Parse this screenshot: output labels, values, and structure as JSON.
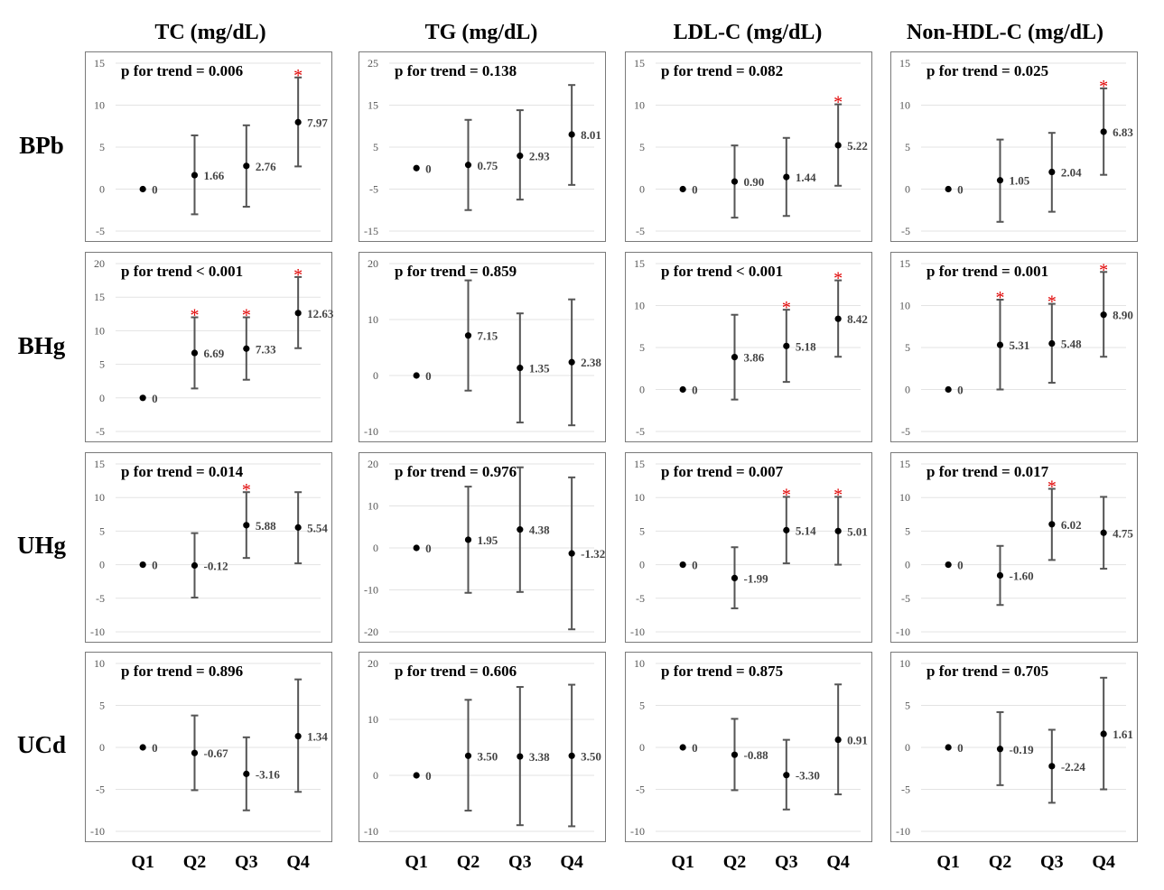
{
  "categories": [
    "Q1",
    "Q2",
    "Q3",
    "Q4"
  ],
  "colors": {
    "point": "#000000",
    "errorbar": "#555555",
    "significance": "#e00000",
    "grid": "#e3e3e3"
  },
  "columns": [
    "TC (mg/dL)",
    "TG (mg/dL)",
    "LDL-C (mg/dL)",
    "Non-HDL-C (mg/dL)"
  ],
  "rows": [
    "BPb",
    "BHg",
    "UHg",
    "UCd"
  ],
  "chart_data": [
    {
      "type": "scatter",
      "row": "BPb",
      "column": "TC (mg/dL)",
      "p_trend": "p for trend = 0.006",
      "ylim": [
        -5,
        15
      ],
      "yticks": [
        -5,
        0,
        5,
        10,
        15
      ],
      "grid": true,
      "values": [
        0,
        1.66,
        2.76,
        7.97
      ],
      "labels": [
        "0",
        "1.66",
        "2.76",
        "7.97"
      ],
      "lower": [
        0,
        -3.0,
        -2.1,
        2.7
      ],
      "upper": [
        0,
        6.4,
        7.6,
        13.3
      ],
      "significant": [
        false,
        false,
        false,
        true
      ]
    },
    {
      "type": "scatter",
      "row": "BPb",
      "column": "TG (mg/dL)",
      "p_trend": "p for trend = 0.138",
      "ylim": [
        -15,
        25
      ],
      "yticks": [
        -15,
        -5,
        5,
        15,
        25
      ],
      "grid": true,
      "values": [
        0,
        0.75,
        2.93,
        8.01
      ],
      "labels": [
        "0",
        "0.75",
        "2.93",
        "8.01"
      ],
      "lower": [
        0,
        -10.0,
        -7.5,
        -4.0
      ],
      "upper": [
        0,
        11.5,
        13.8,
        19.8
      ],
      "significant": [
        false,
        false,
        false,
        false
      ]
    },
    {
      "type": "scatter",
      "row": "BPb",
      "column": "LDL-C (mg/dL)",
      "p_trend": "p for trend = 0.082",
      "ylim": [
        -5,
        15
      ],
      "yticks": [
        -5,
        0,
        5,
        10,
        15
      ],
      "grid": true,
      "values": [
        0,
        0.9,
        1.44,
        5.22
      ],
      "labels": [
        "0",
        "0.90",
        "1.44",
        "5.22"
      ],
      "lower": [
        0,
        -3.4,
        -3.2,
        0.4
      ],
      "upper": [
        0,
        5.2,
        6.1,
        10.1
      ],
      "significant": [
        false,
        false,
        false,
        true
      ]
    },
    {
      "type": "scatter",
      "row": "BPb",
      "column": "Non-HDL-C (mg/dL)",
      "p_trend": "p for trend = 0.025",
      "ylim": [
        -5,
        15
      ],
      "yticks": [
        -5,
        0,
        5,
        10,
        15
      ],
      "grid": true,
      "values": [
        0,
        1.05,
        2.04,
        6.83
      ],
      "labels": [
        "0",
        "1.05",
        "2.04",
        "6.83"
      ],
      "lower": [
        0,
        -3.9,
        -2.7,
        1.7
      ],
      "upper": [
        0,
        5.9,
        6.7,
        12.0
      ],
      "significant": [
        false,
        false,
        false,
        true
      ]
    },
    {
      "type": "scatter",
      "row": "BHg",
      "column": "TC (mg/dL)",
      "p_trend": "p for trend < 0.001",
      "ylim": [
        -5,
        20
      ],
      "yticks": [
        -5,
        0,
        5,
        10,
        15,
        20
      ],
      "grid": true,
      "values": [
        0,
        6.69,
        7.33,
        12.63
      ],
      "labels": [
        "0",
        "6.69",
        "7.33",
        "12.63"
      ],
      "lower": [
        0,
        1.4,
        2.7,
        7.4
      ],
      "upper": [
        0,
        12.0,
        12.0,
        18.0
      ],
      "significant": [
        false,
        true,
        true,
        true
      ]
    },
    {
      "type": "scatter",
      "row": "BHg",
      "column": "TG (mg/dL)",
      "p_trend": "p for trend = 0.859",
      "ylim": [
        -10,
        20
      ],
      "yticks": [
        -10,
        0,
        10,
        20
      ],
      "grid": true,
      "values": [
        0,
        7.15,
        1.35,
        2.38
      ],
      "labels": [
        "0",
        "7.15",
        "1.35",
        "2.38"
      ],
      "lower": [
        0,
        -2.7,
        -8.4,
        -8.9
      ],
      "upper": [
        0,
        17.0,
        11.1,
        13.6
      ],
      "significant": [
        false,
        false,
        false,
        false
      ]
    },
    {
      "type": "scatter",
      "row": "BHg",
      "column": "LDL-C (mg/dL)",
      "p_trend": "p for trend < 0.001",
      "ylim": [
        -5,
        15
      ],
      "yticks": [
        -5,
        0,
        5,
        10,
        15
      ],
      "grid": true,
      "values": [
        0,
        3.86,
        5.18,
        8.42
      ],
      "labels": [
        "0",
        "3.86",
        "5.18",
        "8.42"
      ],
      "lower": [
        0,
        -1.2,
        0.9,
        3.9
      ],
      "upper": [
        0,
        8.9,
        9.5,
        13.0
      ],
      "significant": [
        false,
        false,
        true,
        true
      ]
    },
    {
      "type": "scatter",
      "row": "BHg",
      "column": "Non-HDL-C (mg/dL)",
      "p_trend": "p for trend = 0.001",
      "ylim": [
        -5,
        15
      ],
      "yticks": [
        -5,
        0,
        5,
        10,
        15
      ],
      "grid": true,
      "values": [
        0,
        5.31,
        5.48,
        8.9
      ],
      "labels": [
        "0",
        "5.31",
        "5.48",
        "8.90"
      ],
      "lower": [
        0,
        0.0,
        0.8,
        3.9
      ],
      "upper": [
        0,
        10.7,
        10.2,
        14.0
      ],
      "significant": [
        false,
        true,
        true,
        true
      ]
    },
    {
      "type": "scatter",
      "row": "UHg",
      "column": "TC (mg/dL)",
      "p_trend": "p for trend = 0.014",
      "ylim": [
        -10,
        15
      ],
      "yticks": [
        -10,
        -5,
        0,
        5,
        10,
        15
      ],
      "grid": true,
      "values": [
        0,
        -0.12,
        5.88,
        5.54
      ],
      "labels": [
        "0",
        "-0.12",
        "5.88",
        "5.54"
      ],
      "lower": [
        0,
        -4.9,
        1.0,
        0.2
      ],
      "upper": [
        0,
        4.7,
        10.8,
        10.8
      ],
      "significant": [
        false,
        false,
        true,
        false
      ]
    },
    {
      "type": "scatter",
      "row": "UHg",
      "column": "TG (mg/dL)",
      "p_trend": "p for trend = 0.976",
      "ylim": [
        -20,
        20
      ],
      "yticks": [
        -20,
        -10,
        0,
        10,
        20
      ],
      "grid": true,
      "values": [
        0,
        1.95,
        4.38,
        -1.32
      ],
      "labels": [
        "0",
        "1.95",
        "4.38",
        "-1.32"
      ],
      "lower": [
        0,
        -10.7,
        -10.5,
        -19.4
      ],
      "upper": [
        0,
        14.6,
        19.2,
        16.8
      ],
      "significant": [
        false,
        false,
        false,
        false
      ]
    },
    {
      "type": "scatter",
      "row": "UHg",
      "column": "LDL-C (mg/dL)",
      "p_trend": "p for trend = 0.007",
      "ylim": [
        -10,
        15
      ],
      "yticks": [
        -10,
        -5,
        0,
        5,
        10,
        15
      ],
      "grid": true,
      "values": [
        0,
        -1.99,
        5.14,
        5.01
      ],
      "labels": [
        "0",
        "-1.99",
        "5.14",
        "5.01"
      ],
      "lower": [
        0,
        -6.5,
        0.2,
        0.0
      ],
      "upper": [
        0,
        2.6,
        10.1,
        10.1
      ],
      "significant": [
        false,
        false,
        true,
        true
      ]
    },
    {
      "type": "scatter",
      "row": "UHg",
      "column": "Non-HDL-C (mg/dL)",
      "p_trend": "p for trend = 0.017",
      "ylim": [
        -10,
        15
      ],
      "yticks": [
        -10,
        -5,
        0,
        5,
        10,
        15
      ],
      "grid": true,
      "values": [
        0,
        -1.6,
        6.02,
        4.75
      ],
      "labels": [
        "0",
        "-1.60",
        "6.02",
        "4.75"
      ],
      "lower": [
        0,
        -6.0,
        0.7,
        -0.6
      ],
      "upper": [
        0,
        2.8,
        11.3,
        10.1
      ],
      "significant": [
        false,
        false,
        true,
        false
      ]
    },
    {
      "type": "scatter",
      "row": "UCd",
      "column": "TC (mg/dL)",
      "p_trend": "p for trend = 0.896",
      "ylim": [
        -10,
        10
      ],
      "yticks": [
        -10,
        -5,
        0,
        5,
        10
      ],
      "grid": true,
      "values": [
        0,
        -0.67,
        -3.16,
        1.34
      ],
      "labels": [
        "0",
        "-0.67",
        "-3.16",
        "1.34"
      ],
      "lower": [
        0,
        -5.1,
        -7.5,
        -5.3
      ],
      "upper": [
        0,
        3.8,
        1.2,
        8.1
      ],
      "significant": [
        false,
        false,
        false,
        false
      ]
    },
    {
      "type": "scatter",
      "row": "UCd",
      "column": "TG (mg/dL)",
      "p_trend": "p for trend = 0.606",
      "ylim": [
        -10,
        20
      ],
      "yticks": [
        -10,
        0,
        10,
        20
      ],
      "grid": true,
      "values": [
        0,
        3.5,
        3.38,
        3.5
      ],
      "labels": [
        "0",
        "3.50",
        "3.38",
        "3.50"
      ],
      "lower": [
        0,
        -6.3,
        -8.9,
        -9.1
      ],
      "upper": [
        0,
        13.5,
        15.8,
        16.2
      ],
      "significant": [
        false,
        false,
        false,
        false
      ]
    },
    {
      "type": "scatter",
      "row": "UCd",
      "column": "LDL-C (mg/dL)",
      "p_trend": "p for trend = 0.875",
      "ylim": [
        -10,
        10
      ],
      "yticks": [
        -10,
        -5,
        0,
        5,
        10
      ],
      "grid": true,
      "values": [
        0,
        -0.88,
        -3.3,
        0.91
      ],
      "labels": [
        "0",
        "-0.88",
        "-3.30",
        "0.91"
      ],
      "lower": [
        0,
        -5.1,
        -7.4,
        -5.6
      ],
      "upper": [
        0,
        3.4,
        0.9,
        7.5
      ],
      "significant": [
        false,
        false,
        false,
        false
      ]
    },
    {
      "type": "scatter",
      "row": "UCd",
      "column": "Non-HDL-C (mg/dL)",
      "p_trend": "p for trend = 0.705",
      "ylim": [
        -10,
        10
      ],
      "yticks": [
        -10,
        -5,
        0,
        5,
        10
      ],
      "grid": true,
      "values": [
        0,
        -0.19,
        -2.24,
        1.61
      ],
      "labels": [
        "0",
        "-0.19",
        "-2.24",
        "1.61"
      ],
      "lower": [
        0,
        -4.5,
        -6.6,
        -5.0
      ],
      "upper": [
        0,
        4.2,
        2.1,
        8.3
      ],
      "significant": [
        false,
        false,
        false,
        false
      ]
    }
  ]
}
